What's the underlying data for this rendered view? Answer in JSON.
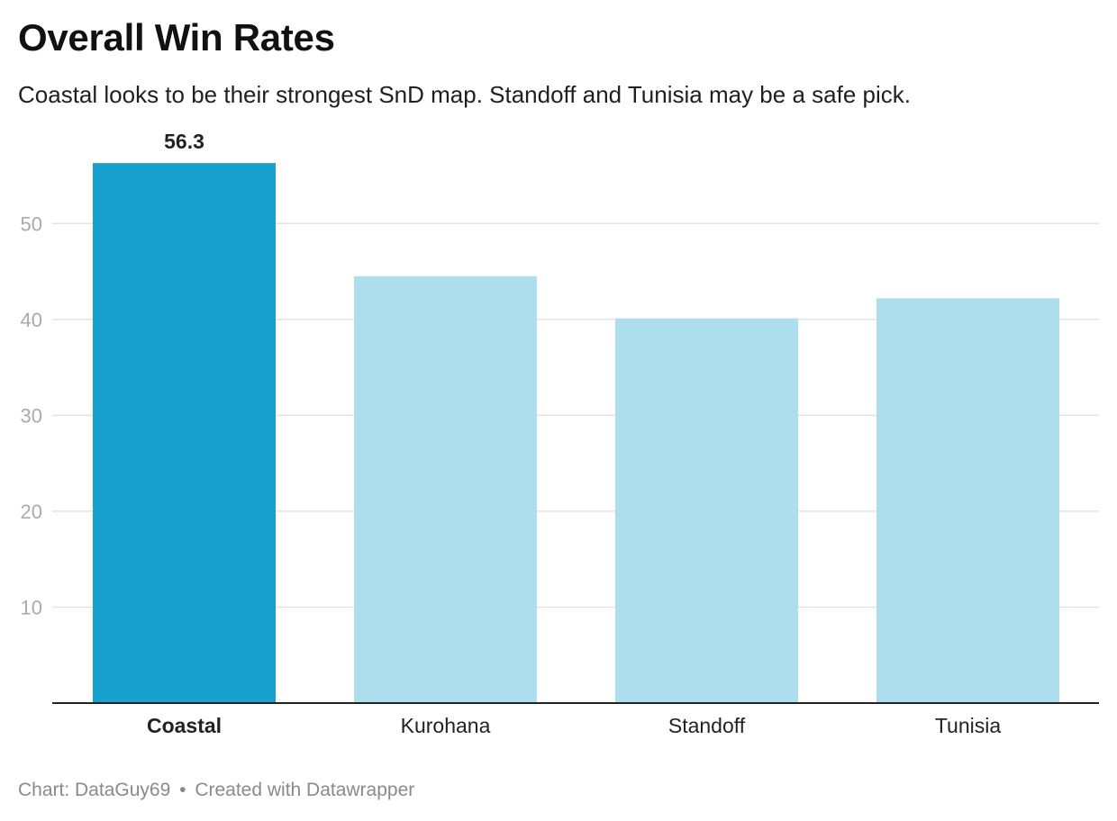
{
  "title": "Overall Win Rates",
  "subtitle": "Coastal looks to be their strongest SnD map. Standoff and Tunisia may be a safe pick.",
  "footer": {
    "source": "Chart: DataGuy69",
    "separator": "•",
    "credit": "Created with Datawrapper"
  },
  "colors": {
    "highlight": "#18a1cd",
    "muted": "#addeed",
    "grid": "#e3e3e3",
    "axis": "#222222",
    "tick": "#aaaaaa"
  },
  "chart_data": {
    "type": "bar",
    "title": "Overall Win Rates",
    "xlabel": "",
    "ylabel": "",
    "categories": [
      "Coastal",
      "Kurohana",
      "Standoff",
      "Tunisia"
    ],
    "values": [
      56.3,
      44.5,
      40.1,
      42.2
    ],
    "highlighted": "Coastal",
    "value_labels": [
      {
        "category": "Coastal",
        "text": "56.3"
      }
    ],
    "ylim": [
      0,
      60
    ],
    "yticks": [
      10,
      20,
      30,
      40,
      50
    ],
    "grid": true
  }
}
